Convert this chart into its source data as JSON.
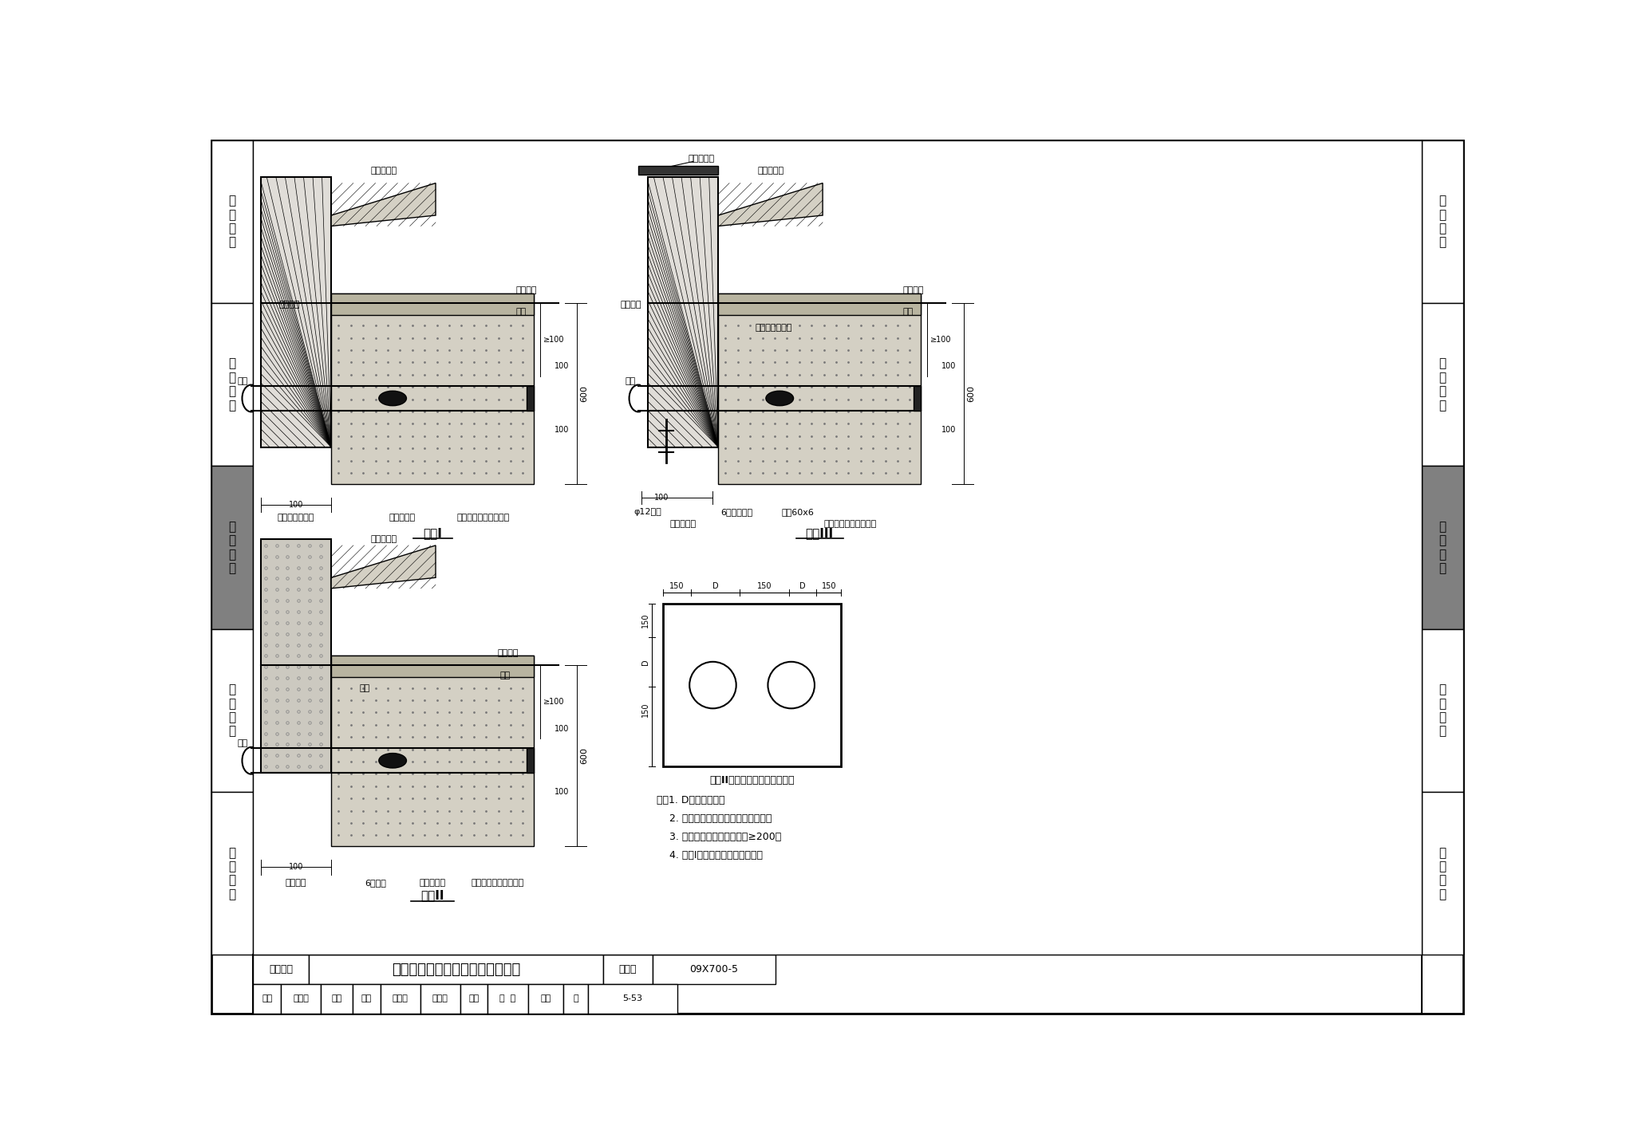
{
  "title": "电缆、光缆直埋引入建筑物的做法",
  "page_number": "5-53",
  "figure_number": "09X700-5",
  "category": "缆线敷设",
  "bg_color": "#ffffff",
  "border_color": "#000000",
  "left_sidebar": [
    "机\n房\n工\n程",
    "供\n电\n电\n源",
    "缆\n线\n敷\n设",
    "设\n备\n安\n装",
    "防\n雷\n接\n地"
  ],
  "right_sidebar": [
    "机\n房\n工\n程",
    "供\n电\n电\n源",
    "缆\n线\n敷\n设",
    "设\n备\n安\n装",
    "防\n雷\n接\n地"
  ],
  "sidebar_highlight_idx": 2,
  "sidebar_highlight_color": "#808080",
  "note_lines": [
    "注：1. D为钢管外径。",
    "    2. 穿管保护管径及材料详见设计图。",
    "    3. 电缆保护管伸出散水坡外≥200。",
    "    4. 方案I适用于地下水位较低处。"
  ]
}
